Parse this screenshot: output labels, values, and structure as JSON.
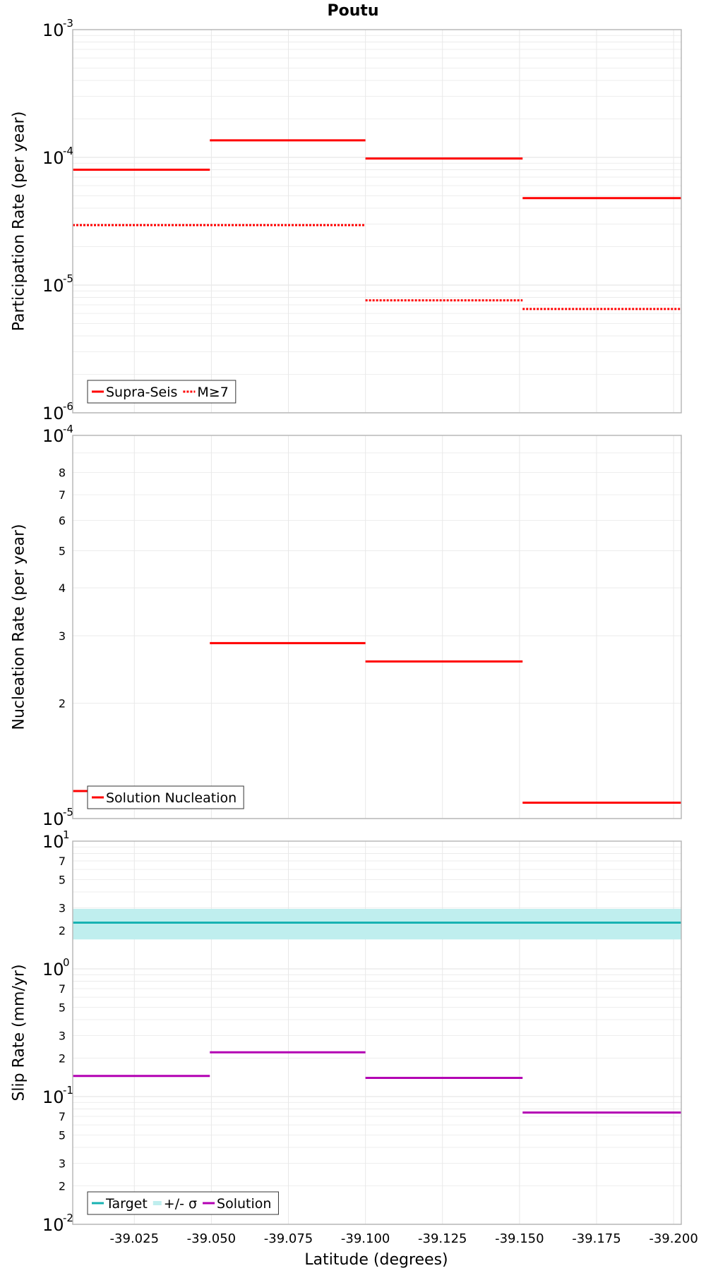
{
  "title": "Poutu",
  "xlabel": "Latitude (degrees)",
  "colors": {
    "red": "#ff0000",
    "teal": "#17b2b2",
    "band": "#bfeeee",
    "magenta": "#b300b3",
    "grid": "#e8e8e8",
    "frame": "#b8b8b8"
  },
  "chart_data": [
    {
      "type": "line",
      "ylabel": "Participation Rate (per year)",
      "yscale": "log",
      "xlim": [
        -39.005,
        -39.2025
      ],
      "ylim": [
        1e-06,
        0.001
      ],
      "major_ticks": [
        {
          "base": "10",
          "exp": "-6"
        },
        {
          "base": "10",
          "exp": "-5"
        },
        {
          "base": "10",
          "exp": "-4"
        },
        {
          "base": "10",
          "exp": "-3"
        }
      ],
      "legend": {
        "placement": "bottom-left",
        "entries": [
          "Supra-Seis",
          "M≥7"
        ]
      },
      "series": [
        {
          "name": "Supra-Seis",
          "style": "solid",
          "color": "#ff0000",
          "segments": [
            {
              "x": [
                -39.005,
                -39.0495
              ],
              "y": 8e-05
            },
            {
              "x": [
                -39.0495,
                -39.1
              ],
              "y": 0.000136
            },
            {
              "x": [
                -39.1,
                -39.151
              ],
              "y": 9.8e-05
            },
            {
              "x": [
                -39.151,
                -39.2025
              ],
              "y": 4.8e-05
            }
          ]
        },
        {
          "name": "M≥7",
          "style": "dotted",
          "color": "#ff0000",
          "segments": [
            {
              "x": [
                -39.005,
                -39.1
              ],
              "y": 2.95e-05
            },
            {
              "x": [
                -39.1,
                -39.151
              ],
              "y": 7.6e-06
            },
            {
              "x": [
                -39.151,
                -39.2025
              ],
              "y": 6.5e-06
            }
          ]
        }
      ]
    },
    {
      "type": "line",
      "ylabel": "Nucleation Rate (per year)",
      "yscale": "log",
      "xlim": [
        -39.005,
        -39.2025
      ],
      "ylim": [
        1e-05,
        0.0001
      ],
      "major_ticks": [
        {
          "base": "10",
          "exp": "-5"
        },
        {
          "base": "10",
          "exp": "-4"
        }
      ],
      "minor_ticks": [
        {
          "label": "2",
          "value": 2e-05
        },
        {
          "label": "3",
          "value": 3e-05
        },
        {
          "label": "4",
          "value": 4e-05
        },
        {
          "label": "5",
          "value": 5e-05
        },
        {
          "label": "6",
          "value": 6e-05
        },
        {
          "label": "7",
          "value": 7e-05
        },
        {
          "label": "8",
          "value": 8e-05
        }
      ],
      "legend": {
        "placement": "bottom-left",
        "entries": [
          "Solution Nucleation"
        ]
      },
      "series": [
        {
          "name": "Solution Nucleation",
          "style": "solid",
          "color": "#ff0000",
          "segments": [
            {
              "x": [
                -39.005,
                -39.0495
              ],
              "y": 1.18e-05
            },
            {
              "x": [
                -39.0495,
                -39.1
              ],
              "y": 2.87e-05
            },
            {
              "x": [
                -39.1,
                -39.151
              ],
              "y": 2.57e-05
            },
            {
              "x": [
                -39.151,
                -39.2025
              ],
              "y": 1.1e-05
            }
          ]
        }
      ]
    },
    {
      "type": "line",
      "ylabel": "Slip Rate (mm/yr)",
      "yscale": "log",
      "xlim": [
        -39.005,
        -39.2025
      ],
      "ylim": [
        0.01,
        10
      ],
      "major_ticks": [
        {
          "base": "10",
          "exp": "-2"
        },
        {
          "base": "10",
          "exp": "-1"
        },
        {
          "base": "10",
          "exp": "0"
        },
        {
          "base": "10",
          "exp": "1"
        }
      ],
      "minor_ticks": [
        {
          "label": "2",
          "value": 0.02
        },
        {
          "label": "3",
          "value": 0.03
        },
        {
          "label": "5",
          "value": 0.05
        },
        {
          "label": "7",
          "value": 0.07
        },
        {
          "label": "2",
          "value": 0.2
        },
        {
          "label": "3",
          "value": 0.3
        },
        {
          "label": "5",
          "value": 0.5
        },
        {
          "label": "7",
          "value": 0.7
        },
        {
          "label": "2",
          "value": 2
        },
        {
          "label": "3",
          "value": 3
        },
        {
          "label": "5",
          "value": 5
        },
        {
          "label": "7",
          "value": 7
        }
      ],
      "x_ticks": [
        "-39.025",
        "-39.050",
        "-39.075",
        "-39.100",
        "-39.125",
        "-39.150",
        "-39.175",
        "-39.200"
      ],
      "x_tick_values": [
        -39.025,
        -39.05,
        -39.075,
        -39.1,
        -39.125,
        -39.15,
        -39.175,
        -39.2
      ],
      "legend": {
        "placement": "bottom-left",
        "entries": [
          "Target",
          "+/- σ",
          "Solution"
        ]
      },
      "band": {
        "name": "+/- σ",
        "color": "#bfeeee",
        "lower": 1.7,
        "upper": 2.95
      },
      "series": [
        {
          "name": "Target",
          "style": "solid",
          "color": "#17b2b2",
          "segments": [
            {
              "x": [
                -39.005,
                -39.2025
              ],
              "y": 2.3
            }
          ]
        },
        {
          "name": "Solution",
          "style": "solid",
          "color": "#b300b3",
          "segments": [
            {
              "x": [
                -39.005,
                -39.0495
              ],
              "y": 0.145
            },
            {
              "x": [
                -39.0495,
                -39.1
              ],
              "y": 0.222
            },
            {
              "x": [
                -39.1,
                -39.151
              ],
              "y": 0.14
            },
            {
              "x": [
                -39.151,
                -39.2025
              ],
              "y": 0.075
            }
          ]
        }
      ]
    }
  ]
}
